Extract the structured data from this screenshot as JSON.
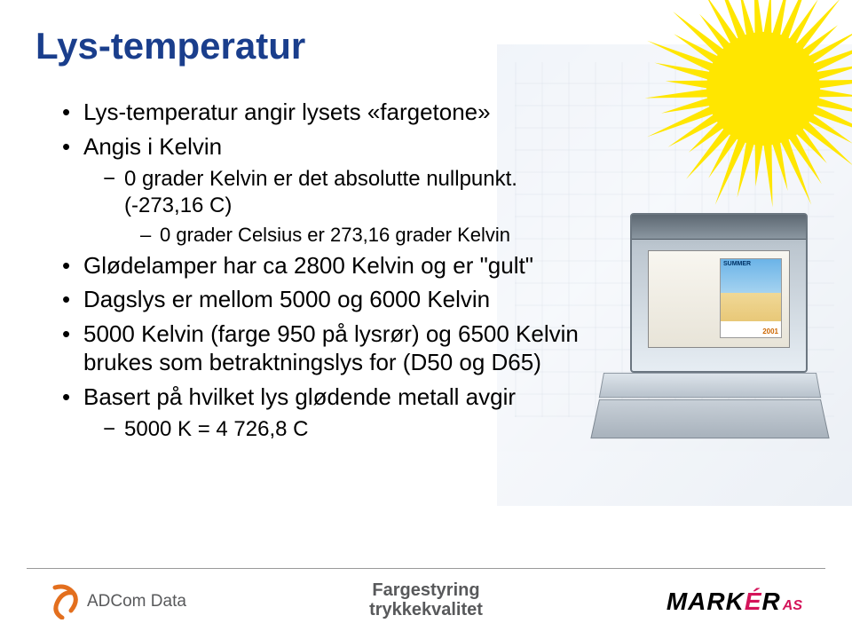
{
  "title": "Lys-temperatur",
  "title_color": "#1a3e8c",
  "bullets": {
    "b1": "Lys-temperatur angir lysets «fargetone»",
    "b2": "Angis i Kelvin",
    "b2a": "0 grader Kelvin er det absolutte nullpunkt. (-273,16 C)",
    "b2b": "0 grader Celsius er 273,16 grader Kelvin",
    "b3": "Glødelamper har ca  2800 Kelvin og er \"gult\"",
    "b4": "Dagslys er mellom 5000 og 6000 Kelvin",
    "b5": "5000 Kelvin (farge 950 på lysrør) og 6500 Kelvin brukes som betraktningslys for (D50 og D65)",
    "b6": "Basert på hvilket lys glødende metall avgir",
    "b6a": "5000 K = 4 726,8 C"
  },
  "sun": {
    "fill": "#ffe600",
    "rays": 40,
    "inner_r": 60,
    "outer_r": 130
  },
  "poster": {
    "label": "SUMMER",
    "year": "2001"
  },
  "footer": {
    "center_line1": "Fargestyring",
    "center_line2": "trykkekvalitet",
    "adcom_text": "ADCom Data",
    "adcom_color": "#e36f1e",
    "marker_main": "MARK",
    "marker_e": "É",
    "marker_r": "R",
    "marker_as": "AS"
  }
}
